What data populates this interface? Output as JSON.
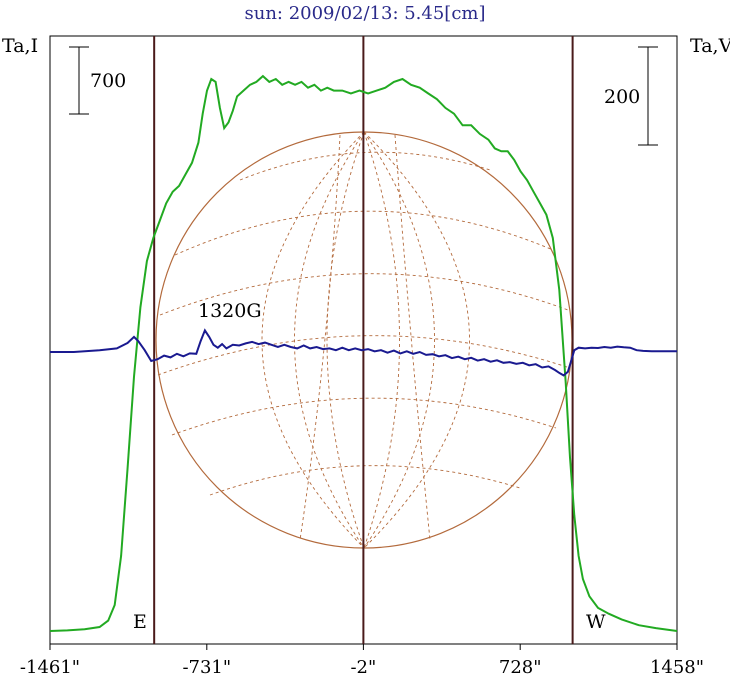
{
  "chart_data": {
    "type": "line",
    "title": "sun: 2009/02/13: 5.45[cm]",
    "left_axis_label": "Ta,I",
    "right_axis_label": "Ta,V",
    "xlim": [
      -1461,
      1458
    ],
    "x_ticks": [
      {
        "value": -1461,
        "label": "-1461\""
      },
      {
        "value": -731,
        "label": "-731\""
      },
      {
        "value": -2,
        "label": "-2\""
      },
      {
        "value": 728,
        "label": "728\""
      },
      {
        "value": 1458,
        "label": "1458\""
      }
    ],
    "scale_bar_intensity": "700",
    "scale_bar_polarization": "200",
    "limb_labels": {
      "east": "E",
      "west": "W"
    },
    "annotation": "1320G",
    "vertical_lines_x": [
      -976,
      -2,
      972
    ],
    "series": [
      {
        "key": "intensity",
        "color": "#22aa22",
        "points": [
          [
            -1461,
            0
          ],
          [
            -1380,
            0.01
          ],
          [
            -1300,
            0.03
          ],
          [
            -1230,
            0.07
          ],
          [
            -1190,
            0.18
          ],
          [
            -1160,
            0.45
          ],
          [
            -1130,
            1.3
          ],
          [
            -1100,
            2.8
          ],
          [
            -1070,
            4.4
          ],
          [
            -1040,
            5.6
          ],
          [
            -1010,
            6.4
          ],
          [
            -980,
            6.8
          ],
          [
            -950,
            7.1
          ],
          [
            -920,
            7.4
          ],
          [
            -890,
            7.6
          ],
          [
            -860,
            7.7
          ],
          [
            -830,
            7.9
          ],
          [
            -800,
            8.1
          ],
          [
            -770,
            8.45
          ],
          [
            -750,
            8.95
          ],
          [
            -730,
            9.35
          ],
          [
            -710,
            9.55
          ],
          [
            -690,
            9.5
          ],
          [
            -670,
            9.05
          ],
          [
            -650,
            8.7
          ],
          [
            -630,
            8.8
          ],
          [
            -610,
            9.0
          ],
          [
            -590,
            9.25
          ],
          [
            -560,
            9.35
          ],
          [
            -530,
            9.45
          ],
          [
            -500,
            9.5
          ],
          [
            -470,
            9.6
          ],
          [
            -440,
            9.5
          ],
          [
            -410,
            9.55
          ],
          [
            -380,
            9.45
          ],
          [
            -350,
            9.5
          ],
          [
            -320,
            9.45
          ],
          [
            -290,
            9.5
          ],
          [
            -260,
            9.4
          ],
          [
            -230,
            9.45
          ],
          [
            -200,
            9.35
          ],
          [
            -170,
            9.4
          ],
          [
            -140,
            9.35
          ],
          [
            -100,
            9.35
          ],
          [
            -60,
            9.3
          ],
          [
            -20,
            9.35
          ],
          [
            20,
            9.3
          ],
          [
            60,
            9.35
          ],
          [
            100,
            9.4
          ],
          [
            140,
            9.5
          ],
          [
            180,
            9.55
          ],
          [
            220,
            9.45
          ],
          [
            260,
            9.4
          ],
          [
            300,
            9.3
          ],
          [
            340,
            9.2
          ],
          [
            380,
            9.05
          ],
          [
            420,
            8.95
          ],
          [
            460,
            8.75
          ],
          [
            500,
            8.75
          ],
          [
            540,
            8.6
          ],
          [
            580,
            8.5
          ],
          [
            610,
            8.35
          ],
          [
            640,
            8.3
          ],
          [
            670,
            8.3
          ],
          [
            700,
            8.15
          ],
          [
            730,
            7.95
          ],
          [
            760,
            7.8
          ],
          [
            790,
            7.6
          ],
          [
            820,
            7.4
          ],
          [
            850,
            7.2
          ],
          [
            880,
            6.8
          ],
          [
            910,
            5.9
          ],
          [
            940,
            4.3
          ],
          [
            960,
            3.0
          ],
          [
            980,
            2.0
          ],
          [
            1000,
            1.3
          ],
          [
            1020,
            0.9
          ],
          [
            1050,
            0.6
          ],
          [
            1090,
            0.4
          ],
          [
            1140,
            0.3
          ],
          [
            1200,
            0.2
          ],
          [
            1280,
            0.1
          ],
          [
            1360,
            0.05
          ],
          [
            1458,
            0.0
          ]
        ]
      },
      {
        "key": "polarization",
        "color": "#1a1a90",
        "points": [
          [
            -1461,
            0
          ],
          [
            -1350,
            0
          ],
          [
            -1230,
            0.05
          ],
          [
            -1150,
            0.1
          ],
          [
            -1100,
            0.25
          ],
          [
            -1070,
            0.42
          ],
          [
            -1050,
            0.3
          ],
          [
            -1020,
            0.05
          ],
          [
            -990,
            -0.25
          ],
          [
            -960,
            -0.2
          ],
          [
            -930,
            -0.1
          ],
          [
            -900,
            -0.15
          ],
          [
            -870,
            -0.05
          ],
          [
            -840,
            -0.12
          ],
          [
            -810,
            -0.04
          ],
          [
            -780,
            -0.05
          ],
          [
            -760,
            0.3
          ],
          [
            -740,
            0.6
          ],
          [
            -720,
            0.42
          ],
          [
            -700,
            0.2
          ],
          [
            -680,
            0.12
          ],
          [
            -660,
            0.22
          ],
          [
            -640,
            0.1
          ],
          [
            -610,
            0.2
          ],
          [
            -580,
            0.18
          ],
          [
            -550,
            0.24
          ],
          [
            -520,
            0.28
          ],
          [
            -490,
            0.22
          ],
          [
            -460,
            0.26
          ],
          [
            -430,
            0.2
          ],
          [
            -400,
            0.14
          ],
          [
            -370,
            0.2
          ],
          [
            -340,
            0.14
          ],
          [
            -310,
            0.1
          ],
          [
            -280,
            0.18
          ],
          [
            -250,
            0.1
          ],
          [
            -220,
            0.14
          ],
          [
            -190,
            0.08
          ],
          [
            -160,
            0.1
          ],
          [
            -130,
            0.05
          ],
          [
            -100,
            0.12
          ],
          [
            -70,
            0.05
          ],
          [
            -40,
            0.1
          ],
          [
            -10,
            0.05
          ],
          [
            20,
            0.08
          ],
          [
            50,
            0.02
          ],
          [
            80,
            0.05
          ],
          [
            110,
            -0.02
          ],
          [
            140,
            0.04
          ],
          [
            170,
            -0.04
          ],
          [
            200,
            0.02
          ],
          [
            230,
            -0.05
          ],
          [
            260,
            0.0
          ],
          [
            290,
            -0.08
          ],
          [
            320,
            -0.06
          ],
          [
            350,
            -0.12
          ],
          [
            380,
            -0.09
          ],
          [
            410,
            -0.17
          ],
          [
            440,
            -0.13
          ],
          [
            470,
            -0.2
          ],
          [
            500,
            -0.16
          ],
          [
            530,
            -0.24
          ],
          [
            560,
            -0.2
          ],
          [
            590,
            -0.27
          ],
          [
            620,
            -0.23
          ],
          [
            650,
            -0.3
          ],
          [
            680,
            -0.28
          ],
          [
            710,
            -0.33
          ],
          [
            740,
            -0.3
          ],
          [
            770,
            -0.37
          ],
          [
            800,
            -0.34
          ],
          [
            830,
            -0.43
          ],
          [
            860,
            -0.4
          ],
          [
            890,
            -0.5
          ],
          [
            910,
            -0.58
          ],
          [
            930,
            -0.65
          ],
          [
            950,
            -0.55
          ],
          [
            965,
            -0.25
          ],
          [
            980,
            0.05
          ],
          [
            1000,
            0.12
          ],
          [
            1030,
            0.1
          ],
          [
            1060,
            0.12
          ],
          [
            1090,
            0.11
          ],
          [
            1120,
            0.14
          ],
          [
            1150,
            0.12
          ],
          [
            1180,
            0.15
          ],
          [
            1210,
            0.13
          ],
          [
            1240,
            0.12
          ],
          [
            1270,
            0.05
          ],
          [
            1300,
            0.03
          ],
          [
            1340,
            0.02
          ],
          [
            1400,
            0.02
          ],
          [
            1458,
            0.02
          ]
        ]
      }
    ]
  }
}
